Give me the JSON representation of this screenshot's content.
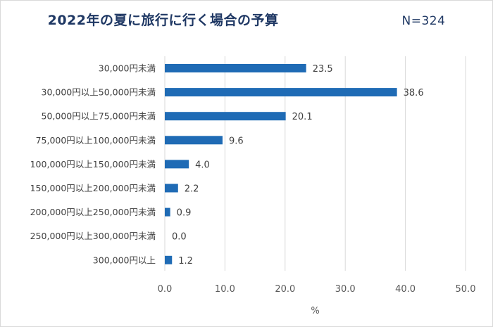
{
  "header": {
    "title": "2022年の夏に旅行に行く場合の予算",
    "sample": "N=324"
  },
  "chart_data": {
    "type": "bar",
    "orientation": "horizontal",
    "title": "2022年の夏に旅行に行く場合の予算",
    "xlabel": "%",
    "ylabel": "",
    "xlim": [
      0,
      50
    ],
    "xticks": [
      "0.0",
      "10.0",
      "20.0",
      "30.0",
      "40.0",
      "50.0"
    ],
    "grid": true,
    "bar_color": "#1f6bb5",
    "categories": [
      "30,000円未満",
      "30,000円以上50,000円未満",
      "50,000円以上75,000円未満",
      "75,000円以上100,000円未満",
      "100,000円以上150,000円未満",
      "150,000円以上200,000円未満",
      "200,000円以上250,000円未満",
      "250,000円以上300,000円未満",
      "300,000円以上"
    ],
    "values": [
      23.5,
      38.6,
      20.1,
      9.6,
      4.0,
      2.2,
      0.9,
      0.0,
      1.2
    ],
    "value_labels": [
      "23.5",
      "38.6",
      "20.1",
      "9.6",
      "4.0",
      "2.2",
      "0.9",
      "0.0",
      "1.2"
    ]
  }
}
